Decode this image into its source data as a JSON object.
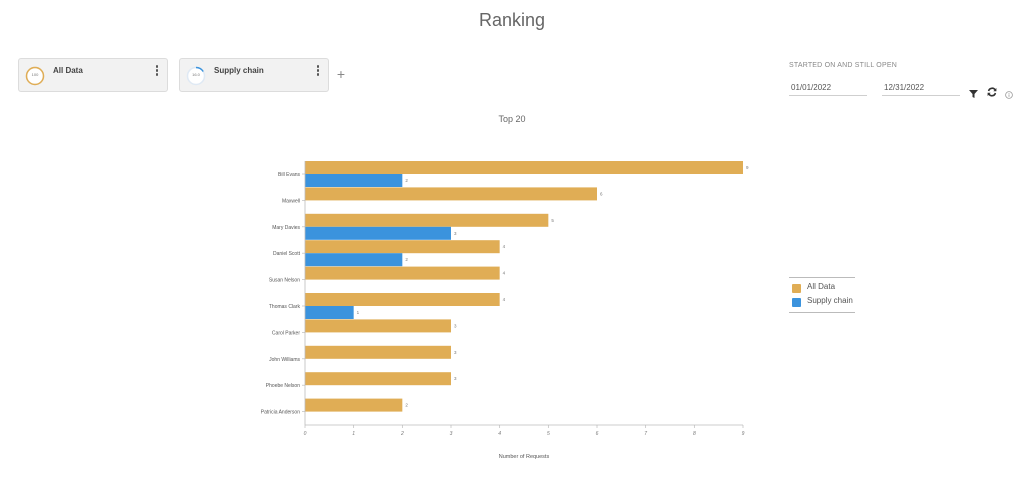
{
  "page": {
    "title": "Ranking"
  },
  "segments": [
    {
      "name": "All Data",
      "ring_label": "100",
      "ring_fraction": 1.0,
      "ring_color": "#e0ad55",
      "menu_icon": "vertical-dots-icon"
    },
    {
      "name": "Supply chain",
      "ring_label": "16.0",
      "ring_fraction": 0.16,
      "ring_color": "#3b93dd",
      "menu_icon": "vertical-dots-icon"
    }
  ],
  "add_segment": {
    "icon": "plus-icon",
    "glyph": "+"
  },
  "filters": {
    "label": "STARTED ON AND STILL OPEN",
    "start_date": "01/01/2022",
    "end_date": "12/31/2022",
    "icons": [
      "filter-icon",
      "refresh-icon",
      "info-icon"
    ]
  },
  "legend": [
    {
      "name": "All Data",
      "color": "#e0ad55"
    },
    {
      "name": "Supply chain",
      "color": "#3b93dd"
    }
  ],
  "chart_data": {
    "type": "bar",
    "orientation": "horizontal",
    "title": "Top 20",
    "xlabel": "Number of Requests",
    "ylabel": "",
    "xlim": [
      0,
      9
    ],
    "xticks": [
      "0",
      "1",
      "2",
      "3",
      "4",
      "5",
      "6",
      "7",
      "8",
      "9"
    ],
    "categories": [
      "Bill Evans",
      "Maxwell",
      "Mary Davies",
      "Daniel Scott",
      "Susan Nelson",
      "Thomas Clark",
      "Carol Parker",
      "John Williams",
      "Phoebe Nelson",
      "Patricia Anderson"
    ],
    "series": [
      {
        "name": "All Data",
        "color": "#e0ad55",
        "values": [
          9,
          6,
          5,
          4,
          4,
          4,
          3,
          3,
          3,
          2
        ]
      },
      {
        "name": "Supply chain",
        "color": "#3b93dd",
        "values": [
          2,
          null,
          3,
          2,
          null,
          1,
          null,
          null,
          null,
          null
        ]
      }
    ],
    "legend_position": "right",
    "grid": false
  }
}
